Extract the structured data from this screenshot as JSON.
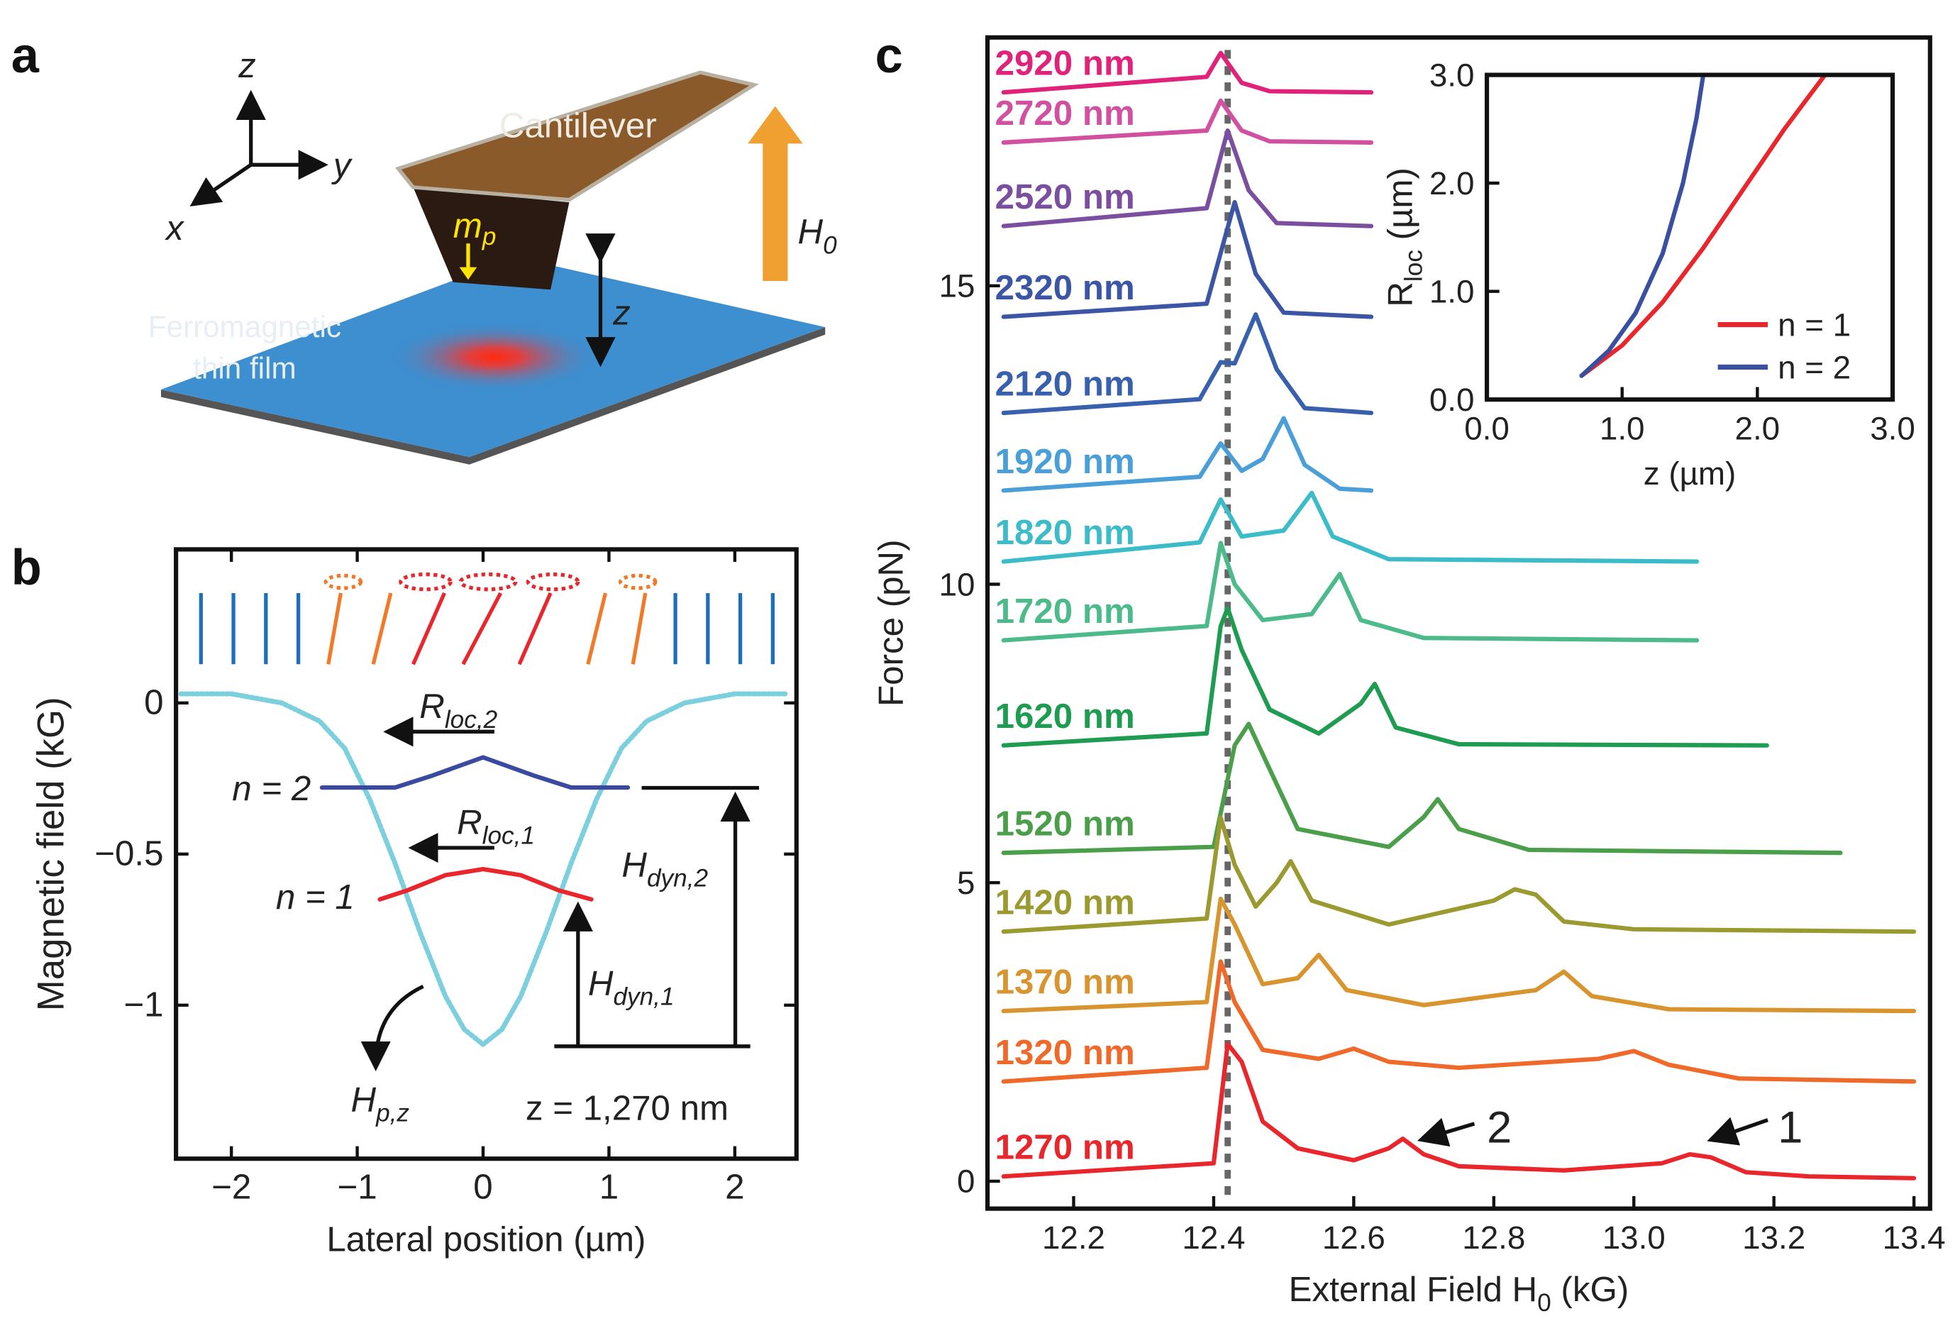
{
  "diagram": {
    "letters": [
      "a",
      "b",
      "c"
    ],
    "cantilever": "Cantilever",
    "moment": "m",
    "moment_sub": "p",
    "field": "H",
    "field_sub": "0",
    "height": "z",
    "film": [
      "Ferromagnetic",
      "thin film"
    ],
    "axes": [
      "z",
      "y",
      "x"
    ]
  },
  "chart_data": [
    {
      "type": "line",
      "xlabel": "Lateral position (µm)",
      "ylabel": "Magnetic field (kG)",
      "xlim": [
        -2.44,
        2.49
      ],
      "ylim": [
        -1.508,
        0.508
      ],
      "xticks": [
        {
          "value": -2,
          "label": "−2"
        },
        {
          "value": -1,
          "label": "−1"
        },
        0,
        1,
        2
      ],
      "yticks": [
        0,
        {
          "value": -0.5,
          "label": "−0.5"
        },
        {
          "value": -1,
          "label": "−1"
        }
      ],
      "series": [
        {
          "color": "#7ccfdc",
          "style": "dotted",
          "x": [
            -2.4,
            -2,
            -1.6,
            -1.3,
            -1.1,
            -0.9,
            -0.7,
            -0.5,
            -0.3,
            -0.15,
            0,
            0.15,
            0.3,
            0.5,
            0.7,
            0.9,
            1.1,
            1.3,
            1.6,
            2,
            2.4
          ],
          "values": [
            0.03,
            0.03,
            0,
            -0.06,
            -0.15,
            -0.32,
            -0.53,
            -0.76,
            -0.97,
            -1.08,
            -1.13,
            -1.08,
            -0.97,
            -0.76,
            -0.53,
            -0.32,
            -0.15,
            -0.06,
            0,
            0.03,
            0.03
          ]
        },
        {
          "color": "#3a4aa0",
          "x": [
            -1.28,
            -0.7,
            -0.4,
            0,
            0.4,
            0.7,
            1.15
          ],
          "values": [
            -0.28,
            -0.28,
            -0.24,
            -0.18,
            -0.24,
            -0.28,
            -0.28
          ]
        },
        {
          "color": "#e8262b",
          "x": [
            -0.82,
            -0.6,
            -0.3,
            0,
            0.3,
            0.6,
            0.86
          ],
          "values": [
            -0.65,
            -0.62,
            -0.57,
            -0.55,
            -0.57,
            -0.62,
            -0.65
          ]
        }
      ],
      "annotations": [
        {
          "text": "R",
          "sub": "loc,2"
        },
        {
          "text": "n = 2"
        },
        {
          "text": "R",
          "sub": "loc,1"
        },
        {
          "text": "n = 1"
        },
        {
          "text": "H",
          "sub": "dyn,2"
        },
        {
          "text": "H",
          "sub": "dyn,1"
        },
        {
          "text": "H",
          "sub": "p,z"
        },
        {
          "text": "z = 1,270 nm"
        }
      ]
    },
    {
      "type": "line",
      "xlabel": "External Field H",
      "xlabel_sub": "0",
      "xlabel_unit": " (kG)",
      "ylabel": "Force (pN)",
      "xlim": [
        12.077,
        13.423
      ],
      "ylim": [
        -0.46,
        19.16
      ],
      "xticks": [
        12.2,
        12.4,
        12.6,
        12.8,
        13,
        13.2,
        13.4
      ],
      "xtick_labels": [
        "12.2",
        "12.4",
        "12.6",
        "12.8",
        "13.0",
        "13.2",
        "13.4"
      ],
      "yticks": [
        0,
        5,
        10,
        15
      ],
      "reference_x": 12.42,
      "series": [
        {
          "name": "2920 nm",
          "color": "#e0227a",
          "x": [
            12.1,
            12.39,
            12.41,
            12.44,
            12.48,
            12.625
          ],
          "values": [
            18.24,
            18.5,
            18.9,
            18.4,
            18.26,
            18.24
          ]
        },
        {
          "name": "2720 nm",
          "color": "#d150a0",
          "x": [
            12.1,
            12.39,
            12.41,
            12.44,
            12.48,
            12.625
          ],
          "values": [
            17.4,
            17.6,
            18.1,
            17.6,
            17.42,
            17.4
          ]
        },
        {
          "name": "2520 nm",
          "color": "#7a4fa0",
          "x": [
            12.1,
            12.39,
            12.42,
            12.45,
            12.49,
            12.625
          ],
          "values": [
            16.0,
            16.3,
            17.6,
            16.6,
            16.05,
            16.0
          ]
        },
        {
          "name": "2320 nm",
          "color": "#3d55a5",
          "x": [
            12.1,
            12.39,
            12.43,
            12.46,
            12.5,
            12.625
          ],
          "values": [
            14.48,
            14.7,
            16.4,
            15.2,
            14.55,
            14.48
          ]
        },
        {
          "name": "2120 nm",
          "color": "#3860ad",
          "x": [
            12.1,
            12.38,
            12.41,
            12.43,
            12.46,
            12.49,
            12.53,
            12.625
          ],
          "values": [
            12.87,
            13.1,
            13.72,
            13.7,
            14.52,
            13.6,
            12.95,
            12.87
          ]
        },
        {
          "name": "1920 nm",
          "color": "#4a9fd8",
          "x": [
            12.1,
            12.38,
            12.41,
            12.44,
            12.47,
            12.5,
            12.53,
            12.58,
            12.625
          ],
          "values": [
            11.57,
            11.8,
            12.36,
            11.9,
            12.1,
            12.78,
            12.0,
            11.6,
            11.57
          ]
        },
        {
          "name": "1820 nm",
          "color": "#3bbcc8",
          "x": [
            12.1,
            12.38,
            12.41,
            12.44,
            12.5,
            12.54,
            12.57,
            12.65,
            13.09
          ],
          "values": [
            10.38,
            10.7,
            11.42,
            10.8,
            10.9,
            11.53,
            10.8,
            10.42,
            10.38
          ]
        },
        {
          "name": "1720 nm",
          "color": "#4cba8a",
          "x": [
            12.1,
            12.39,
            12.41,
            12.43,
            12.47,
            12.54,
            12.58,
            12.61,
            12.7,
            13.09
          ],
          "values": [
            9.06,
            9.3,
            10.69,
            10.0,
            9.4,
            9.5,
            10.17,
            9.4,
            9.1,
            9.06
          ]
        },
        {
          "name": "1620 nm",
          "color": "#1e9c52",
          "x": [
            12.1,
            12.39,
            12.41,
            12.42,
            12.44,
            12.48,
            12.55,
            12.61,
            12.63,
            12.66,
            12.75,
            13.19
          ],
          "values": [
            7.3,
            7.5,
            9.3,
            9.6,
            8.9,
            7.9,
            7.5,
            8.0,
            8.33,
            7.6,
            7.32,
            7.3
          ]
        },
        {
          "name": "1520 nm",
          "color": "#4b9e4a",
          "x": [
            12.1,
            12.4,
            12.43,
            12.45,
            12.48,
            12.52,
            12.65,
            12.7,
            12.72,
            12.75,
            12.85,
            13.295
          ],
          "values": [
            5.5,
            5.6,
            7.3,
            7.66,
            6.9,
            5.9,
            5.6,
            6.1,
            6.4,
            5.9,
            5.55,
            5.5
          ]
        },
        {
          "name": "1420 nm",
          "color": "#9a9a30",
          "x": [
            12.1,
            12.39,
            12.41,
            12.43,
            12.46,
            12.49,
            12.51,
            12.54,
            12.65,
            12.8,
            12.83,
            12.86,
            12.9,
            13,
            13.4
          ],
          "values": [
            4.18,
            4.4,
            6.09,
            5.3,
            4.6,
            5.0,
            5.36,
            4.7,
            4.3,
            4.7,
            4.89,
            4.8,
            4.35,
            4.22,
            4.18
          ]
        },
        {
          "name": "1370 nm",
          "color": "#d8942e",
          "x": [
            12.1,
            12.39,
            12.41,
            12.43,
            12.47,
            12.52,
            12.55,
            12.59,
            12.7,
            12.86,
            12.9,
            12.94,
            13.05,
            13.4
          ],
          "values": [
            2.85,
            3.0,
            4.73,
            4.3,
            3.3,
            3.4,
            3.79,
            3.2,
            2.95,
            3.2,
            3.51,
            3.1,
            2.88,
            2.85
          ]
        },
        {
          "name": "1320 nm",
          "color": "#ef6a2a",
          "x": [
            12.1,
            12.39,
            12.41,
            12.43,
            12.47,
            12.55,
            12.6,
            12.65,
            12.75,
            12.95,
            13,
            13.05,
            13.15,
            13.4
          ],
          "values": [
            1.67,
            1.9,
            3.68,
            3.0,
            2.2,
            2.05,
            2.22,
            2.0,
            1.9,
            2.05,
            2.18,
            1.95,
            1.72,
            1.67
          ]
        },
        {
          "name": "1270 nm",
          "color": "#e8262b",
          "x": [
            12.1,
            12.4,
            12.42,
            12.44,
            12.47,
            12.52,
            12.6,
            12.65,
            12.67,
            12.7,
            12.75,
            12.9,
            13.04,
            13.08,
            13.11,
            13.16,
            13.25,
            13.4
          ],
          "values": [
            0.08,
            0.3,
            2.3,
            2.0,
            1.0,
            0.55,
            0.35,
            0.55,
            0.71,
            0.45,
            0.25,
            0.18,
            0.3,
            0.45,
            0.4,
            0.15,
            0.08,
            0.05
          ]
        }
      ],
      "annotations": [
        {
          "text": "2"
        },
        {
          "text": "1"
        }
      ]
    },
    {
      "type": "line",
      "xlabel": "z (µm)",
      "ylabel": "R",
      "ylabel_sub": "loc",
      "ylabel_unit": " (µm)",
      "xlim": [
        0,
        3
      ],
      "ylim": [
        0,
        3
      ],
      "legend": "lower right",
      "xticks": [
        {
          "value": 0,
          "label": "0.0"
        },
        {
          "value": 1,
          "label": "1.0"
        },
        {
          "value": 2,
          "label": "2.0"
        },
        {
          "value": 3,
          "label": "3.0"
        }
      ],
      "yticks": [
        {
          "value": 0,
          "label": "0.0"
        },
        {
          "value": 1,
          "label": "1.0"
        },
        {
          "value": 2,
          "label": "2.0"
        },
        {
          "value": 3,
          "label": "3.0"
        }
      ],
      "series": [
        {
          "name": "n = 1",
          "color": "#e8262b",
          "x": [
            0.7,
            1.0,
            1.3,
            1.6,
            1.9,
            2.2,
            2.5
          ],
          "values": [
            0.22,
            0.5,
            0.9,
            1.4,
            1.95,
            2.5,
            3.0
          ]
        },
        {
          "name": "n = 2",
          "color": "#3a4fa0",
          "x": [
            0.7,
            0.9,
            1.1,
            1.3,
            1.45,
            1.55,
            1.6
          ],
          "values": [
            0.22,
            0.45,
            0.8,
            1.35,
            2.0,
            2.6,
            3.0
          ]
        }
      ]
    }
  ]
}
